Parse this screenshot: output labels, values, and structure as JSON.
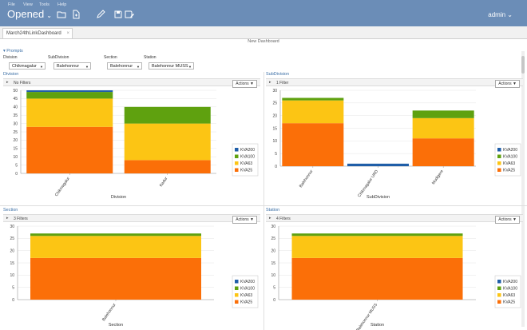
{
  "menu": {
    "items": [
      "File",
      "View",
      "Tools",
      "Help"
    ]
  },
  "app": {
    "brand": "Opened",
    "user": "admin"
  },
  "tabs": [
    {
      "label": "March24thLinkDashboard"
    }
  ],
  "dashboard": {
    "title": "New Dashboard"
  },
  "prompts": {
    "title": "Prompts",
    "fields": [
      {
        "label": "Division",
        "value": "Chikmagalur"
      },
      {
        "label": "SubDivision",
        "value": "Balehonnur"
      },
      {
        "label": "Section",
        "value": "Balehonnur"
      },
      {
        "label": "Station",
        "value": "Balehonnur MUSS"
      }
    ]
  },
  "colors": {
    "KVA200": "#1f5ea8",
    "KVA100": "#5fa10f",
    "KVA63": "#fcc514",
    "KVA25": "#fb6f08",
    "header": "#6b8db7"
  },
  "panels": [
    {
      "title": "Division",
      "filter": "No Filters",
      "actions": "Actions"
    },
    {
      "title": "SubDivision",
      "filter": "1 Filter",
      "actions": "Actions"
    },
    {
      "title": "Section",
      "filter": "3 Filters",
      "actions": "Actions"
    },
    {
      "title": "Station",
      "filter": "4 Filters",
      "actions": "Actions"
    }
  ],
  "chart_data": [
    {
      "type": "bar",
      "stacked": true,
      "xlabel": "Division",
      "ylabel": "",
      "categories": [
        "Chikmagalur",
        "Kadur"
      ],
      "ylim": [
        0,
        50
      ],
      "yticks": [
        0,
        5,
        10,
        15,
        20,
        25,
        30,
        35,
        40,
        45,
        50
      ],
      "series": [
        {
          "name": "KVA200",
          "values": [
            1,
            0
          ]
        },
        {
          "name": "KVA100",
          "values": [
            4,
            10
          ]
        },
        {
          "name": "KVA63",
          "values": [
            17,
            22
          ]
        },
        {
          "name": "KVA25",
          "values": [
            28,
            8
          ]
        }
      ],
      "legend": "right"
    },
    {
      "type": "bar",
      "stacked": true,
      "xlabel": "SubDivision",
      "ylabel": "",
      "categories": [
        "Balehonnur",
        "Chikmagalur URD",
        "Mudigere"
      ],
      "ylim": [
        0,
        30
      ],
      "yticks": [
        0,
        5,
        10,
        15,
        20,
        25,
        30
      ],
      "series": [
        {
          "name": "KVA200",
          "values": [
            0,
            1,
            0
          ]
        },
        {
          "name": "KVA100",
          "values": [
            1,
            0,
            3
          ]
        },
        {
          "name": "KVA63",
          "values": [
            9,
            0,
            8
          ]
        },
        {
          "name": "KVA25",
          "values": [
            17,
            0,
            11
          ]
        }
      ],
      "legend": "right"
    },
    {
      "type": "bar",
      "stacked": true,
      "xlabel": "Section",
      "ylabel": "",
      "categories": [
        "Balehonnur"
      ],
      "ylim": [
        0,
        30
      ],
      "yticks": [
        0,
        5,
        10,
        15,
        20,
        25,
        30
      ],
      "series": [
        {
          "name": "KVA200",
          "values": [
            0
          ]
        },
        {
          "name": "KVA100",
          "values": [
            1
          ]
        },
        {
          "name": "KVA63",
          "values": [
            9
          ]
        },
        {
          "name": "KVA25",
          "values": [
            17
          ]
        }
      ],
      "legend": "right"
    },
    {
      "type": "bar",
      "stacked": true,
      "xlabel": "Station",
      "ylabel": "",
      "categories": [
        "Balehonnur MUSS"
      ],
      "ylim": [
        0,
        30
      ],
      "yticks": [
        0,
        5,
        10,
        15,
        20,
        25,
        30
      ],
      "series": [
        {
          "name": "KVA200",
          "values": [
            0
          ]
        },
        {
          "name": "KVA100",
          "values": [
            1
          ]
        },
        {
          "name": "KVA63",
          "values": [
            9
          ]
        },
        {
          "name": "KVA25",
          "values": [
            17
          ]
        }
      ],
      "legend": "right"
    }
  ]
}
